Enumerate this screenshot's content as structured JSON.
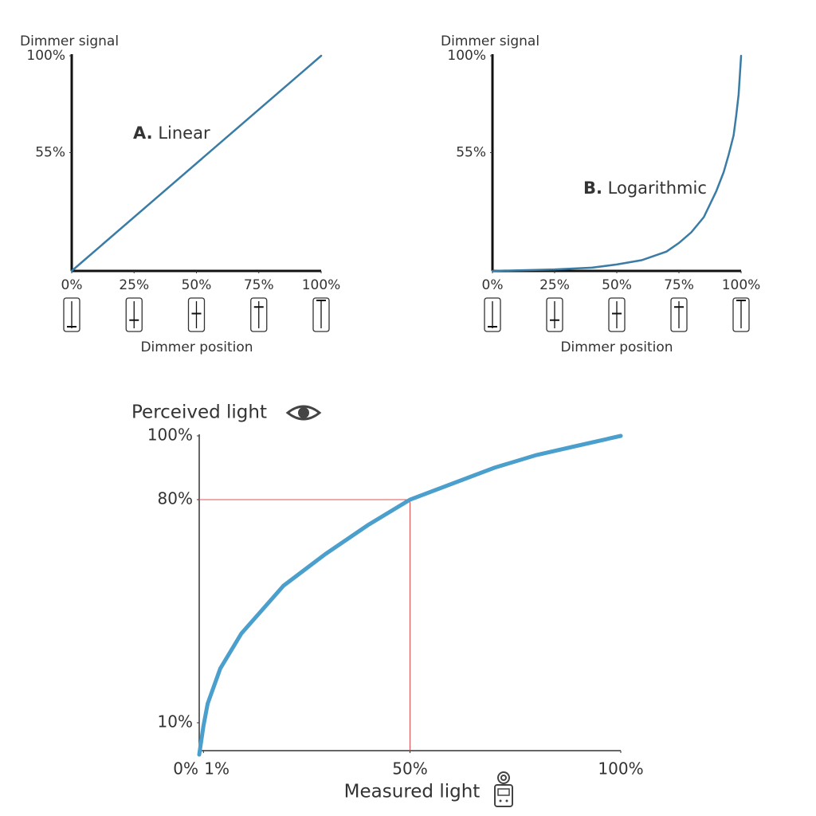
{
  "chart_data": [
    {
      "type": "line",
      "color": "#3a7ca5",
      "ylabel": "Dimmer signal",
      "xlabel": "Dimmer position",
      "annotation": {
        "letter": "A.",
        "text": "Linear"
      },
      "x": [
        0,
        100
      ],
      "values": [
        0,
        100
      ],
      "xlim": [
        0,
        100
      ],
      "ylim": [
        0,
        100
      ],
      "xticks": [
        {
          "value": 0,
          "label": "0%"
        },
        {
          "value": 25,
          "label": "25%"
        },
        {
          "value": 50,
          "label": "50%"
        },
        {
          "value": 75,
          "label": "75%"
        },
        {
          "value": 100,
          "label": "100%"
        }
      ],
      "yticks": [
        {
          "value": 55,
          "label": "55%"
        },
        {
          "value": 100,
          "label": "100%"
        }
      ]
    },
    {
      "type": "line",
      "color": "#3a7ca5",
      "ylabel": "Dimmer signal",
      "xlabel": "Dimmer position",
      "annotation": {
        "letter": "B.",
        "text": "Logarithmic"
      },
      "x": [
        0,
        25,
        40,
        50,
        60,
        70,
        75,
        80,
        85,
        90,
        93,
        95,
        97,
        98,
        99,
        100
      ],
      "values": [
        0,
        0.7,
        1.5,
        3,
        5,
        9,
        13,
        18,
        25,
        37,
        46,
        54,
        63,
        72,
        82,
        100
      ],
      "xlim": [
        0,
        100
      ],
      "ylim": [
        0,
        100
      ],
      "xticks": [
        {
          "value": 0,
          "label": "0%"
        },
        {
          "value": 25,
          "label": "25%"
        },
        {
          "value": 50,
          "label": "50%"
        },
        {
          "value": 75,
          "label": "75%"
        },
        {
          "value": 100,
          "label": "100%"
        }
      ],
      "yticks": [
        {
          "value": 55,
          "label": "55%"
        },
        {
          "value": 100,
          "label": "100%"
        }
      ]
    },
    {
      "type": "line",
      "color": "#4a9fcc",
      "ylabel": "Perceived light",
      "xlabel": "Measured light",
      "x": [
        0,
        1,
        2,
        5,
        10,
        20,
        30,
        40,
        50,
        60,
        70,
        80,
        90,
        100
      ],
      "values": [
        0,
        9,
        16,
        27,
        38,
        53,
        63,
        72,
        80,
        85,
        90,
        94,
        97,
        100
      ],
      "xlim": [
        0,
        100
      ],
      "ylim": [
        0,
        100
      ],
      "reference": {
        "x": 50,
        "y": 80,
        "color": "#e05050"
      },
      "xticks": [
        {
          "value": 0,
          "label": "0%"
        },
        {
          "value": 1,
          "label": "1%"
        },
        {
          "value": 50,
          "label": "50%"
        },
        {
          "value": 100,
          "label": "100%"
        }
      ],
      "yticks": [
        {
          "value": 10,
          "label": "10%"
        },
        {
          "value": 80,
          "label": "80%"
        },
        {
          "value": 100,
          "label": "100%"
        }
      ]
    }
  ]
}
